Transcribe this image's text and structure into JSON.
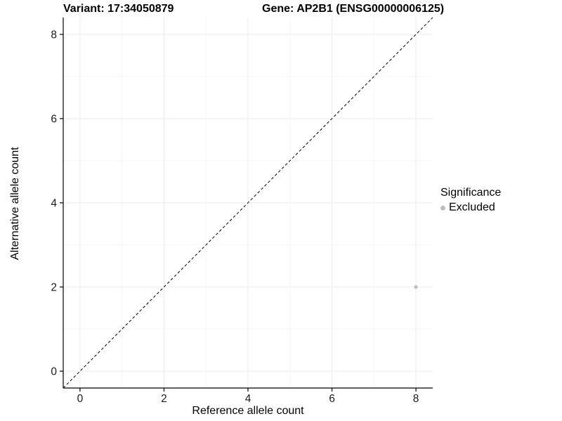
{
  "chart_data": {
    "type": "scatter",
    "title_left": "Variant: 17:34050879",
    "title_right": "Gene: AP2B1 (ENSG00000006125)",
    "xlabel": "Reference allele count",
    "ylabel": "Alternative allele count",
    "xlim": [
      -0.4,
      8.4
    ],
    "ylim": [
      -0.4,
      8.4
    ],
    "x_ticks": [
      0,
      2,
      4,
      6,
      8
    ],
    "y_ticks": [
      0,
      2,
      4,
      6,
      8
    ],
    "x_minor_ticks": [
      1,
      3,
      5,
      7
    ],
    "y_minor_ticks": [
      1,
      3,
      5,
      7
    ],
    "grid": true,
    "identity_line": {
      "style": "dashed",
      "color": "#000000",
      "x1": -0.4,
      "y1": -0.4,
      "x2": 8.4,
      "y2": 8.4
    },
    "series": [
      {
        "name": "Excluded",
        "color": "#bebebe",
        "points": [
          {
            "x": 8,
            "y": 2
          }
        ]
      }
    ],
    "legend": {
      "title": "Significance",
      "position": "right",
      "items": [
        {
          "label": "Excluded",
          "color": "#bebebe"
        }
      ]
    },
    "colors": {
      "background": "#ffffff",
      "major_grid": "#ebebeb",
      "minor_grid": "#f5f5f5",
      "axis_line": "#000000",
      "tick_label": "#1a1a1a",
      "point": "#bebebe"
    }
  }
}
